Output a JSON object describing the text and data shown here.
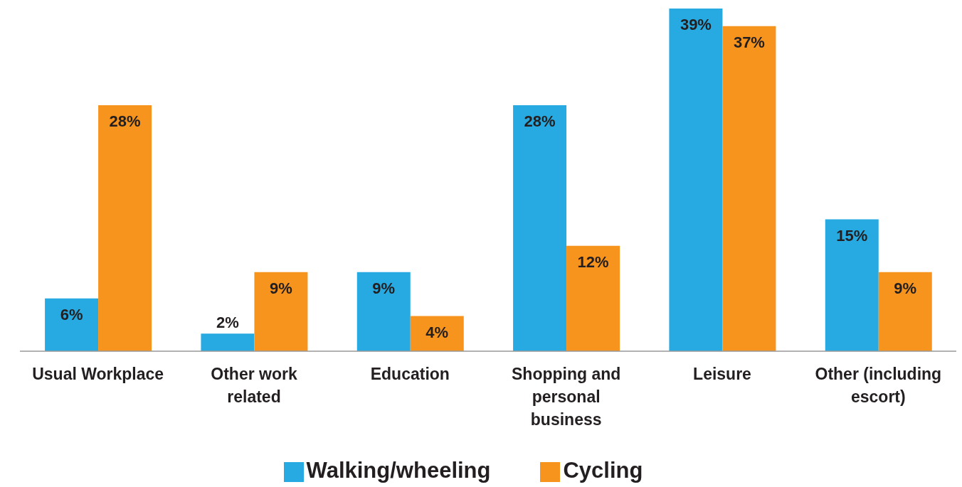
{
  "chart_data": {
    "type": "bar",
    "categories": [
      "Usual Workplace",
      "Other work related",
      "Education",
      "Shopping and personal business",
      "Leisure",
      "Other (including escort)"
    ],
    "series": [
      {
        "name": "Walking/wheeling",
        "color": "#27aae1",
        "values": [
          6,
          2,
          9,
          28,
          39,
          15
        ],
        "value_labels": [
          "6%",
          "2%",
          "9%",
          "28%",
          "39%",
          "15%"
        ]
      },
      {
        "name": "Cycling",
        "color": "#f7941d",
        "values": [
          28,
          9,
          4,
          12,
          37,
          9
        ],
        "value_labels": [
          "28%",
          "9%",
          "4%",
          "12%",
          "37%",
          "9%"
        ]
      }
    ],
    "legend": "bottom",
    "grid": false
  }
}
